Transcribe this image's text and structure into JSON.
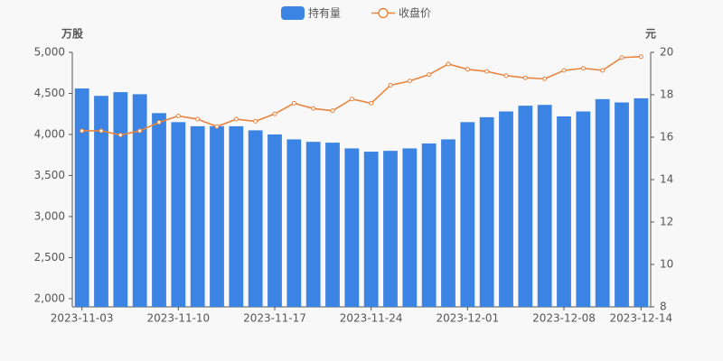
{
  "chart_data": {
    "type": "bar-line",
    "categories": [
      "2023-11-03",
      null,
      null,
      null,
      null,
      "2023-11-10",
      null,
      null,
      null,
      null,
      "2023-11-17",
      null,
      null,
      null,
      null,
      "2023-11-24",
      null,
      null,
      null,
      null,
      "2023-12-01",
      null,
      null,
      null,
      null,
      "2023-12-08",
      null,
      null,
      null,
      "2023-12-14"
    ],
    "series": [
      {
        "name": "持有量",
        "type": "bar",
        "color": "#3b84e3",
        "values": [
          4560,
          4470,
          4515,
          4490,
          4260,
          4150,
          4100,
          4100,
          4100,
          4050,
          4000,
          3940,
          3910,
          3900,
          3830,
          3790,
          3800,
          3830,
          3890,
          3940,
          4150,
          4210,
          4280,
          4350,
          4360,
          4220,
          4280,
          4430,
          4390,
          4440
        ]
      },
      {
        "name": "收盘价",
        "type": "line",
        "axis": "y2",
        "color": "#e8843e",
        "values": [
          16.3,
          16.3,
          16.1,
          16.3,
          16.7,
          17.0,
          16.85,
          16.5,
          16.85,
          16.75,
          17.1,
          17.6,
          17.35,
          17.25,
          17.8,
          17.6,
          18.45,
          18.65,
          18.95,
          19.45,
          19.2,
          19.1,
          18.9,
          18.8,
          18.75,
          19.15,
          19.25,
          19.15,
          19.75,
          19.8
        ]
      }
    ],
    "y_label": "万股",
    "y2_label": "元",
    "ylim": [
      1900,
      5000
    ],
    "yticks": [
      {
        "value": 2000,
        "label": "2,000"
      },
      {
        "value": 2500,
        "label": "2,500"
      },
      {
        "value": 3000,
        "label": "3,000"
      },
      {
        "value": 3500,
        "label": "3,500"
      },
      {
        "value": 4000,
        "label": "4,000"
      },
      {
        "value": 4500,
        "label": "4,500"
      },
      {
        "value": 5000,
        "label": "5,000"
      }
    ],
    "y2lim": [
      8,
      20
    ],
    "y2ticks": [
      8,
      10,
      12,
      14,
      16,
      18,
      20
    ]
  }
}
